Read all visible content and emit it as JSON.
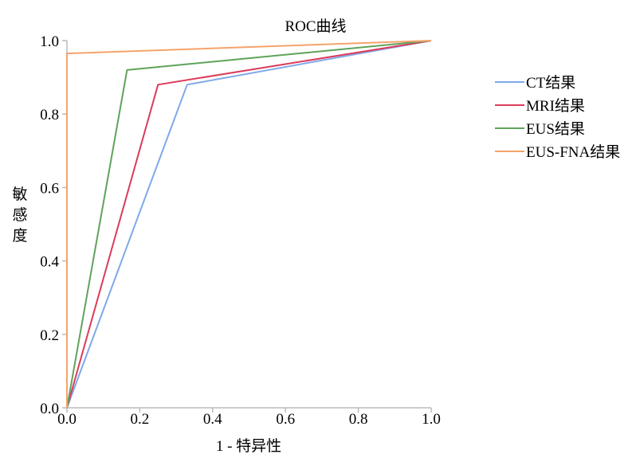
{
  "chart_data": {
    "type": "line",
    "title": "ROC曲线",
    "xlabel": "1 - 特异性",
    "ylabel": "敏感度",
    "xlim": [
      0,
      1
    ],
    "ylim": [
      0,
      1
    ],
    "x_ticks": [
      "0.0",
      "0.2",
      "0.4",
      "0.6",
      "0.8",
      "1.0"
    ],
    "y_ticks": [
      "0.0",
      "0.2",
      "0.4",
      "0.6",
      "0.8",
      "1.0"
    ],
    "grid": false,
    "legend_position": "right",
    "series": [
      {
        "name": "CT结果",
        "color": "#7fa9e8",
        "points": [
          [
            0,
            0
          ],
          [
            0.33,
            0.88
          ],
          [
            1,
            1
          ]
        ]
      },
      {
        "name": "MRI结果",
        "color": "#dc3b5a",
        "points": [
          [
            0,
            0
          ],
          [
            0.25,
            0.88
          ],
          [
            1,
            1
          ]
        ]
      },
      {
        "name": "EUS结果",
        "color": "#5fa35a",
        "points": [
          [
            0,
            0
          ],
          [
            0.165,
            0.92
          ],
          [
            1,
            1
          ]
        ]
      },
      {
        "name": "EUS-FNA结果",
        "color": "#f5a36b",
        "points": [
          [
            0,
            0
          ],
          [
            0,
            0.965
          ],
          [
            1,
            1
          ]
        ]
      }
    ]
  }
}
